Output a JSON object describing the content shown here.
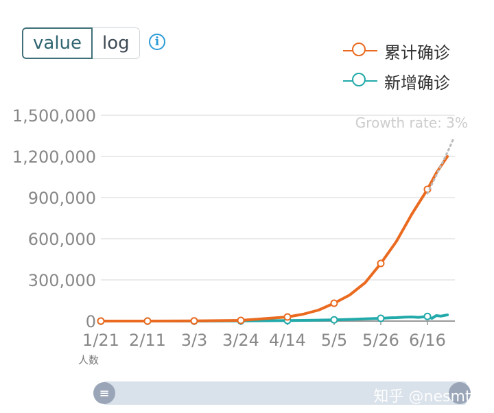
{
  "controls": {
    "scale_options": [
      "value",
      "log"
    ],
    "selected": "value",
    "info_icon": "info-circle-icon"
  },
  "watermark": "知乎 @nesmto",
  "chart_data": {
    "type": "line",
    "x_tick_labels": [
      "1/21",
      "2/11",
      "3/3",
      "3/24",
      "4/14",
      "5/5",
      "5/26",
      "6/16"
    ],
    "ylim": [
      0,
      1500000
    ],
    "y_ticks": [
      0,
      300000,
      600000,
      900000,
      1200000,
      1500000
    ],
    "y_tick_labels": [
      "0",
      "300,000",
      "600,000",
      "900,000",
      "1,200,000",
      "1,500,000"
    ],
    "y_unit_label": "人数",
    "grid": true,
    "legend_position": "top-right",
    "annotation": "Growth rate: 3%",
    "series": [
      {
        "name": "累计确诊",
        "color": "#ea6a1f",
        "x": [
          "1/21",
          "2/11",
          "3/3",
          "3/24",
          "4/14",
          "4/21",
          "4/28",
          "5/5",
          "5/12",
          "5/19",
          "5/26",
          "6/2",
          "6/9",
          "6/16",
          "6/20",
          "6/25"
        ],
        "values": [
          0,
          100,
          1000,
          5000,
          30000,
          50000,
          80000,
          130000,
          190000,
          280000,
          420000,
          580000,
          780000,
          960000,
          1080000,
          1200000
        ],
        "markers": [
          "1/21",
          "2/11",
          "3/3",
          "3/24",
          "4/14",
          "5/5",
          "5/26",
          "6/16"
        ]
      },
      {
        "name": "新增确诊",
        "color": "#22a9a9",
        "x": [
          "1/21",
          "2/11",
          "3/3",
          "3/24",
          "4/14",
          "4/21",
          "4/28",
          "5/5",
          "5/12",
          "5/19",
          "5/26",
          "5/30",
          "6/2",
          "6/6",
          "6/9",
          "6/12",
          "6/16",
          "6/18",
          "6/20",
          "6/22",
          "6/25"
        ],
        "values": [
          0,
          50,
          200,
          1200,
          4000,
          5000,
          7000,
          9000,
          12000,
          16000,
          20000,
          24000,
          25000,
          29000,
          30000,
          27000,
          34000,
          20000,
          40000,
          36000,
          45000
        ],
        "markers": [
          "1/21",
          "2/11",
          "3/3",
          "3/24",
          "4/14",
          "5/5",
          "5/26",
          "6/16"
        ]
      },
      {
        "name": "Growth rate: 3%",
        "color": "#bbbbbb",
        "dashed": true,
        "x": [
          "6/16",
          "6/25",
          "6/28"
        ],
        "values": [
          930000,
          1230000,
          1340000
        ]
      }
    ]
  }
}
